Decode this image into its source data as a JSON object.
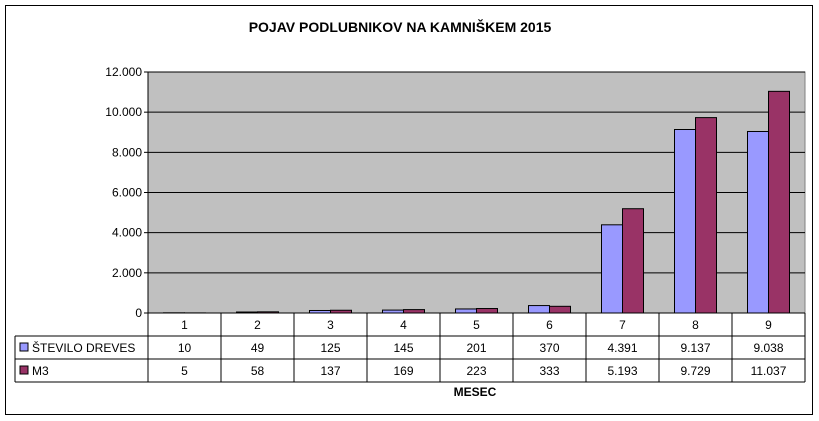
{
  "chart_data": {
    "type": "bar",
    "title": "POJAV PODLUBNIKOV NA KAMNIŠKEM 2015",
    "xlabel": "MESEC",
    "ylabel": "",
    "categories": [
      "1",
      "2",
      "3",
      "4",
      "5",
      "6",
      "7",
      "8",
      "9"
    ],
    "ylim": [
      0,
      12000
    ],
    "yticks": [
      0,
      2000,
      4000,
      6000,
      8000,
      10000,
      12000
    ],
    "ytick_labels": [
      "0",
      "2.000",
      "4.000",
      "6.000",
      "8.000",
      "10.000",
      "12.000"
    ],
    "grid": true,
    "legend": "data-table",
    "series": [
      {
        "name": "ŠTEVILO DREVES",
        "color": "#9999ff",
        "values": [
          10,
          49,
          125,
          145,
          201,
          370,
          4391,
          9137,
          9038
        ],
        "labels": [
          "10",
          "49",
          "125",
          "145",
          "201",
          "370",
          "4.391",
          "9.137",
          "9.038"
        ]
      },
      {
        "name": "M3",
        "color": "#993366",
        "values": [
          5,
          58,
          137,
          169,
          223,
          333,
          5193,
          9729,
          11037
        ],
        "labels": [
          "5",
          "58",
          "137",
          "169",
          "223",
          "333",
          "5.193",
          "9.729",
          "11.037"
        ]
      }
    ],
    "plot_background": "#c0c0c0"
  }
}
